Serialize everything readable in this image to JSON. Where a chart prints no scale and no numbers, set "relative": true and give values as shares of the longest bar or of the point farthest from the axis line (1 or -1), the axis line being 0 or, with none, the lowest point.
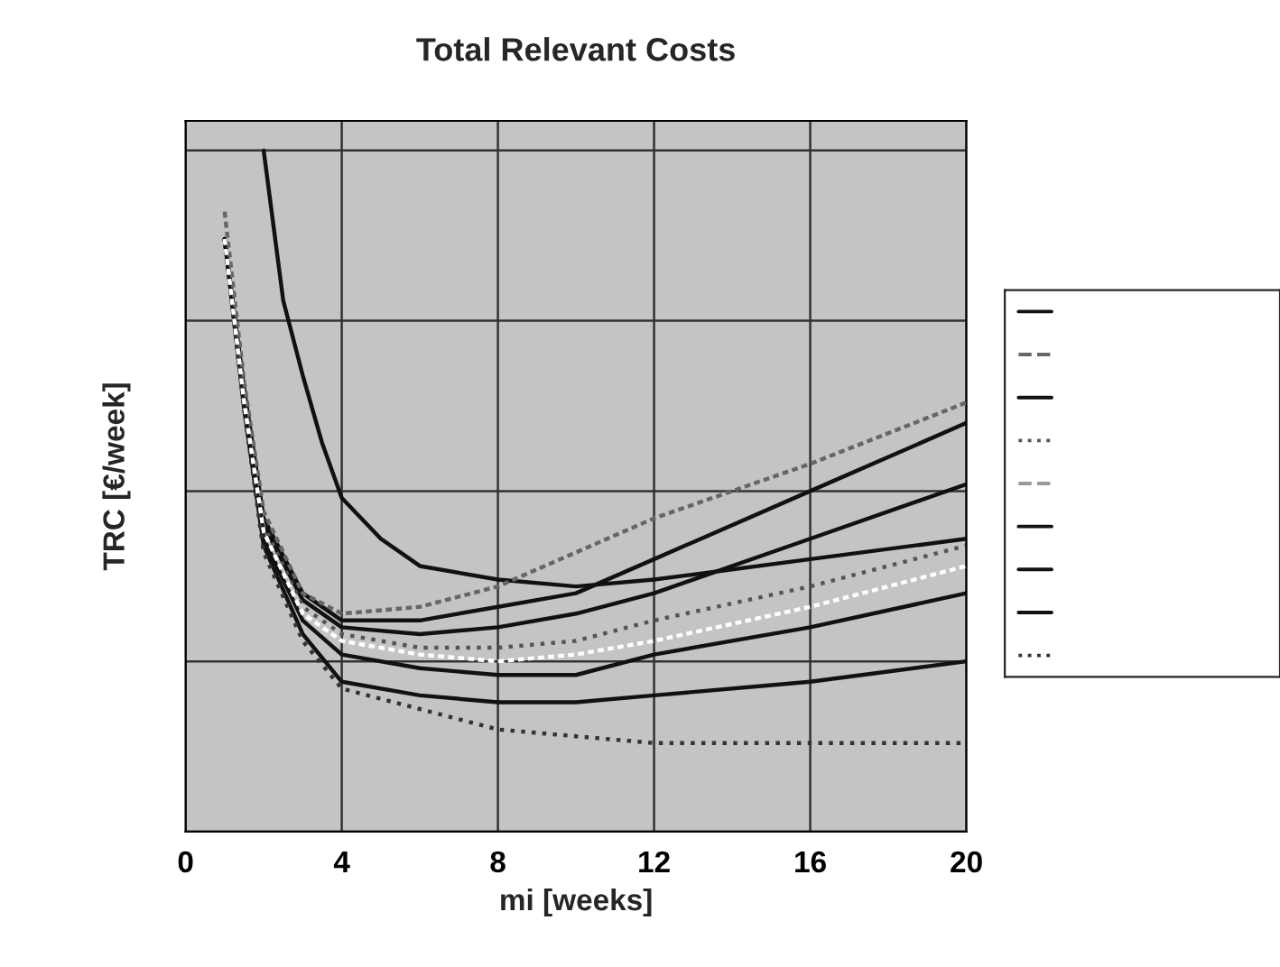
{
  "chart_data": {
    "type": "line",
    "title": "Total Relevant Costs",
    "xlabel": "mi [weeks]",
    "ylabel": "TRC [€/week]",
    "relative": true,
    "xlim": [
      0,
      20
    ],
    "xticks": [
      0,
      4,
      8,
      12,
      16,
      20
    ],
    "grid": true,
    "marker": "none",
    "x": [
      1,
      1.5,
      2,
      3,
      4,
      6,
      8,
      10,
      12,
      16,
      20
    ],
    "series": [
      {
        "color": "#111111",
        "line_style": "solid",
        "values": [
          0.87,
          0.65,
          0.46,
          0.35,
          0.31,
          0.31,
          0.33,
          0.35,
          0.4,
          0.5,
          0.6
        ]
      },
      {
        "color": "#666666",
        "line_style": "dashed",
        "values": [
          0.91,
          0.66,
          0.47,
          0.35,
          0.32,
          0.33,
          0.36,
          0.41,
          0.46,
          0.54,
          0.63
        ]
      },
      {
        "color": "#111111",
        "line_style": "solid",
        "values": [
          0.87,
          0.64,
          0.45,
          0.34,
          0.3,
          0.29,
          0.3,
          0.32,
          0.35,
          0.43,
          0.51
        ]
      },
      {
        "color": "#555555",
        "line_style": "dotted",
        "values": [
          0.87,
          0.64,
          0.45,
          0.33,
          0.29,
          0.27,
          0.27,
          0.28,
          0.31,
          0.36,
          0.42
        ]
      },
      {
        "color": "#ffffff",
        "line_style": "dashed",
        "values": [
          0.87,
          0.63,
          0.44,
          0.32,
          0.28,
          0.26,
          0.25,
          0.26,
          0.28,
          0.33,
          0.39
        ]
      },
      {
        "color": "#111111",
        "line_style": "solid",
        "x": [
          2,
          2.5,
          3,
          3.5,
          4,
          5,
          6,
          8,
          10,
          12,
          16,
          20
        ],
        "values": [
          1,
          0.78,
          0.67,
          0.57,
          0.49,
          0.43,
          0.39,
          0.37,
          0.36,
          0.37,
          0.4,
          0.43
        ]
      },
      {
        "color": "#111111",
        "line_style": "solid",
        "values": [
          0.87,
          0.63,
          0.43,
          0.31,
          0.26,
          0.24,
          0.23,
          0.23,
          0.26,
          0.3,
          0.35
        ]
      },
      {
        "color": "#111111",
        "line_style": "solid",
        "values": [
          0.87,
          0.62,
          0.42,
          0.29,
          0.22,
          0.2,
          0.19,
          0.19,
          0.2,
          0.22,
          0.25
        ]
      },
      {
        "color": "#333333",
        "line_style": "dotted",
        "values": [
          0.87,
          0.62,
          0.41,
          0.28,
          0.21,
          0.18,
          0.15,
          0.14,
          0.13,
          0.13,
          0.13
        ]
      }
    ]
  }
}
